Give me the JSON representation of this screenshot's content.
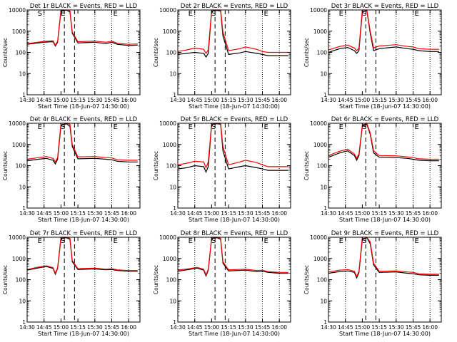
{
  "chart_data": [
    {
      "type": "line",
      "title": "Det 1r BLACK = Events, RED = LLD",
      "xlabel": "Start Time (18-Jun-07 14:30:00)",
      "ylabel": "Counts/sec",
      "yscale": "log",
      "ylim": [
        1,
        10000
      ],
      "xlim": [
        "14:30",
        "16:10"
      ],
      "x_ticks": [
        "14:30",
        "14:45",
        "15:00",
        "15:15",
        "15:30",
        "15:45",
        "16:00"
      ],
      "y_ticks": [
        "1",
        "10",
        "100",
        "1000",
        "10000"
      ],
      "markers": [
        "S",
        "E",
        "E"
      ],
      "series": [
        {
          "color": "#000000",
          "x": [
            "14:30",
            "14:45",
            "14:53",
            "14:55",
            "14:57",
            "15:00",
            "15:05",
            "15:08",
            "15:10",
            "15:15",
            "15:30",
            "15:40",
            "15:45",
            "15:50",
            "16:00",
            "16:08"
          ],
          "values": [
            240,
            300,
            320,
            200,
            300,
            9500,
            9800,
            8000,
            800,
            280,
            300,
            260,
            300,
            240,
            210,
            220
          ]
        },
        {
          "color": "#ff0000",
          "x": [
            "14:30",
            "14:45",
            "14:53",
            "14:55",
            "14:57",
            "15:00",
            "15:05",
            "15:08",
            "15:10",
            "15:15",
            "15:30",
            "15:40",
            "15:45",
            "15:50",
            "16:00",
            "16:08"
          ],
          "values": [
            260,
            330,
            350,
            220,
            330,
            10000,
            10000,
            9000,
            900,
            320,
            340,
            300,
            340,
            270,
            240,
            250
          ]
        }
      ]
    },
    {
      "type": "line",
      "title": "Det 2r BLACK = Events, RED = LLD",
      "xlabel": "Start Time (18-Jun-07 14:30:00)",
      "ylabel": "Counts/sec",
      "yscale": "log",
      "ylim": [
        1,
        10000
      ],
      "xlim": [
        "14:30",
        "16:10"
      ],
      "x_ticks": [
        "14:30",
        "14:45",
        "15:00",
        "15:15",
        "15:30",
        "15:45",
        "16:00"
      ],
      "y_ticks": [
        "1",
        "10",
        "100",
        "1000",
        "10000"
      ],
      "markers": [
        "E",
        "S",
        "E"
      ],
      "series": [
        {
          "color": "#000000",
          "x": [
            "14:30",
            "14:38",
            "14:45",
            "14:53",
            "14:55",
            "14:57",
            "15:00",
            "15:05",
            "15:08",
            "15:10",
            "15:15",
            "15:25",
            "15:30",
            "15:40",
            "15:45",
            "15:50",
            "16:00",
            "16:08"
          ],
          "values": [
            80,
            90,
            100,
            90,
            60,
            90,
            9000,
            9500,
            9000,
            600,
            80,
            95,
            110,
            90,
            80,
            70,
            70,
            70
          ]
        },
        {
          "color": "#ff0000",
          "x": [
            "14:30",
            "14:38",
            "14:45",
            "14:53",
            "14:55",
            "14:57",
            "15:00",
            "15:05",
            "15:08",
            "15:10",
            "15:15",
            "15:25",
            "15:30",
            "15:40",
            "15:45",
            "15:50",
            "16:00",
            "16:08"
          ],
          "values": [
            110,
            130,
            160,
            140,
            90,
            130,
            10000,
            10000,
            10000,
            900,
            120,
            150,
            180,
            140,
            110,
            100,
            100,
            100
          ]
        }
      ]
    },
    {
      "type": "line",
      "title": "Det 3r BLACK = Events, RED = LLD",
      "xlabel": "Start Time (18-Jun-07 14:30:00)",
      "ylabel": "Counts/sec",
      "yscale": "log",
      "ylim": [
        1,
        10000
      ],
      "xlim": [
        "14:30",
        "16:10"
      ],
      "x_ticks": [
        "14:30",
        "14:45",
        "15:00",
        "15:15",
        "15:30",
        "15:45",
        "16:00"
      ],
      "y_ticks": [
        "1",
        "10",
        "100",
        "1000",
        "10000"
      ],
      "markers": [
        "E",
        "S",
        "E"
      ],
      "series": [
        {
          "color": "#000000",
          "x": [
            "14:30",
            "14:40",
            "14:47",
            "14:53",
            "14:55",
            "14:57",
            "15:00",
            "15:04",
            "15:07",
            "15:10",
            "15:15",
            "15:25",
            "15:30",
            "15:40",
            "15:45",
            "15:50",
            "16:00",
            "16:08"
          ],
          "values": [
            100,
            150,
            170,
            120,
            90,
            120,
            8000,
            9500,
            800,
            120,
            150,
            170,
            180,
            150,
            140,
            120,
            110,
            110
          ]
        },
        {
          "color": "#ff0000",
          "x": [
            "14:30",
            "14:40",
            "14:47",
            "14:53",
            "14:55",
            "14:57",
            "15:00",
            "15:04",
            "15:07",
            "15:10",
            "15:15",
            "15:25",
            "15:30",
            "15:40",
            "15:45",
            "15:50",
            "16:00",
            "16:08"
          ],
          "values": [
            130,
            190,
            220,
            160,
            120,
            160,
            10000,
            10000,
            1000,
            160,
            200,
            220,
            230,
            190,
            180,
            150,
            140,
            140
          ]
        }
      ]
    },
    {
      "type": "line",
      "title": "Det 4r BLACK = Events, RED = LLD",
      "xlabel": "Start Time (18-Jun-07 14:30:00)",
      "ylabel": "Counts/sec",
      "yscale": "log",
      "ylim": [
        1,
        10000
      ],
      "xlim": [
        "14:30",
        "16:10"
      ],
      "x_ticks": [
        "14:30",
        "14:45",
        "15:00",
        "15:15",
        "15:30",
        "15:45",
        "16:00"
      ],
      "y_ticks": [
        "1",
        "10",
        "100",
        "1000",
        "10000"
      ],
      "markers": [
        "E",
        "S",
        "E"
      ],
      "series": [
        {
          "color": "#000000",
          "x": [
            "14:30",
            "14:40",
            "14:47",
            "14:53",
            "14:55",
            "14:57",
            "15:00",
            "15:05",
            "15:08",
            "15:10",
            "15:15",
            "15:30",
            "15:40",
            "15:45",
            "15:50",
            "16:00",
            "16:08"
          ],
          "values": [
            170,
            200,
            220,
            180,
            120,
            200,
            8000,
            9500,
            7000,
            800,
            210,
            220,
            200,
            190,
            160,
            150,
            150
          ]
        },
        {
          "color": "#ff0000",
          "x": [
            "14:30",
            "14:40",
            "14:47",
            "14:53",
            "14:55",
            "14:57",
            "15:00",
            "15:05",
            "15:08",
            "15:10",
            "15:15",
            "15:30",
            "15:40",
            "15:45",
            "15:50",
            "16:00",
            "16:08"
          ],
          "values": [
            200,
            240,
            270,
            220,
            150,
            240,
            10000,
            10000,
            9000,
            1000,
            260,
            270,
            240,
            230,
            190,
            180,
            180
          ]
        }
      ]
    },
    {
      "type": "line",
      "title": "Det 5r BLACK = Events, RED = LLD",
      "xlabel": "Start Time (18-Jun-07 14:30:00)",
      "ylabel": "Counts/sec",
      "yscale": "log",
      "ylim": [
        1,
        10000
      ],
      "xlim": [
        "14:30",
        "16:10"
      ],
      "x_ticks": [
        "14:30",
        "14:45",
        "15:00",
        "15:15",
        "15:30",
        "15:45",
        "16:00"
      ],
      "y_ticks": [
        "1",
        "10",
        "100",
        "1000",
        "10000"
      ],
      "markers": [
        "E",
        "S",
        "E"
      ],
      "series": [
        {
          "color": "#000000",
          "x": [
            "14:30",
            "14:38",
            "14:45",
            "14:53",
            "14:55",
            "14:57",
            "15:00",
            "15:05",
            "15:08",
            "15:10",
            "15:15",
            "15:25",
            "15:30",
            "15:40",
            "15:45",
            "15:50",
            "16:00",
            "16:08"
          ],
          "values": [
            70,
            80,
            100,
            90,
            50,
            90,
            9000,
            9500,
            9000,
            500,
            70,
            90,
            100,
            80,
            70,
            60,
            60,
            60
          ]
        },
        {
          "color": "#ff0000",
          "x": [
            "14:30",
            "14:38",
            "14:45",
            "14:53",
            "14:55",
            "14:57",
            "15:00",
            "15:05",
            "15:08",
            "15:10",
            "15:15",
            "15:25",
            "15:30",
            "15:40",
            "15:45",
            "15:50",
            "16:00",
            "16:08"
          ],
          "values": [
            110,
            130,
            160,
            150,
            80,
            150,
            10000,
            10000,
            10000,
            800,
            110,
            150,
            180,
            140,
            110,
            90,
            90,
            90
          ]
        }
      ]
    },
    {
      "type": "line",
      "title": "Det 6r BLACK = Events, RED = LLD",
      "xlabel": "Start Time (18-Jun-07 14:30:00)",
      "ylabel": "Counts/sec",
      "yscale": "log",
      "ylim": [
        1,
        10000
      ],
      "xlim": [
        "14:30",
        "16:10"
      ],
      "x_ticks": [
        "14:30",
        "14:45",
        "15:00",
        "15:15",
        "15:30",
        "15:45",
        "16:00"
      ],
      "y_ticks": [
        "1",
        "10",
        "100",
        "1000",
        "10000"
      ],
      "markers": [
        "E",
        "S",
        "E"
      ],
      "series": [
        {
          "color": "#000000",
          "x": [
            "14:30",
            "14:40",
            "14:47",
            "14:53",
            "14:55",
            "14:57",
            "15:00",
            "15:04",
            "15:07",
            "15:10",
            "15:15",
            "15:30",
            "15:40",
            "15:45",
            "15:50",
            "16:00",
            "16:08"
          ],
          "values": [
            250,
            400,
            500,
            300,
            180,
            300,
            7000,
            9000,
            3000,
            400,
            250,
            240,
            220,
            200,
            180,
            170,
            170
          ]
        },
        {
          "color": "#ff0000",
          "x": [
            "14:30",
            "14:40",
            "14:47",
            "14:53",
            "14:55",
            "14:57",
            "15:00",
            "15:04",
            "15:07",
            "15:10",
            "15:15",
            "15:30",
            "15:40",
            "15:45",
            "15:50",
            "16:00",
            "16:08"
          ],
          "values": [
            300,
            480,
            600,
            360,
            220,
            360,
            8000,
            10000,
            3500,
            500,
            300,
            290,
            260,
            240,
            210,
            200,
            200
          ]
        }
      ]
    },
    {
      "type": "line",
      "title": "Det 7r BLACK = Events, RED = LLD",
      "xlabel": "Start Time (18-Jun-07 14:30:00)",
      "ylabel": "Counts/sec",
      "yscale": "log",
      "ylim": [
        1,
        10000
      ],
      "xlim": [
        "14:30",
        "16:10"
      ],
      "x_ticks": [
        "14:30",
        "14:45",
        "15:00",
        "15:15",
        "15:30",
        "15:45",
        "16:00"
      ],
      "y_ticks": [
        "1",
        "10",
        "100",
        "1000",
        "10000"
      ],
      "markers": [
        "E",
        "S",
        "E"
      ],
      "series": [
        {
          "color": "#000000",
          "x": [
            "14:30",
            "14:40",
            "14:47",
            "14:53",
            "14:55",
            "14:57",
            "15:00",
            "15:05",
            "15:08",
            "15:10",
            "15:15",
            "15:30",
            "15:40",
            "15:45",
            "15:50",
            "16:00",
            "16:08"
          ],
          "values": [
            280,
            360,
            420,
            340,
            180,
            340,
            9000,
            9500,
            8000,
            700,
            300,
            320,
            290,
            300,
            270,
            250,
            250
          ]
        },
        {
          "color": "#ff0000",
          "x": [
            "14:30",
            "14:40",
            "14:47",
            "14:53",
            "14:55",
            "14:57",
            "15:00",
            "15:05",
            "15:08",
            "15:10",
            "15:15",
            "15:30",
            "15:40",
            "15:45",
            "15:50",
            "16:00",
            "16:08"
          ],
          "values": [
            300,
            390,
            450,
            370,
            200,
            370,
            10000,
            10000,
            9000,
            800,
            330,
            350,
            310,
            330,
            290,
            270,
            270
          ]
        }
      ]
    },
    {
      "type": "line",
      "title": "Det 8r BLACK = Events, RED = LLD",
      "xlabel": "Start Time (18-Jun-07 14:30:00)",
      "ylabel": "Counts/sec",
      "yscale": "log",
      "ylim": [
        1,
        10000
      ],
      "xlim": [
        "14:30",
        "16:10"
      ],
      "x_ticks": [
        "14:30",
        "14:45",
        "15:00",
        "15:15",
        "15:30",
        "15:45",
        "16:00"
      ],
      "y_ticks": [
        "1",
        "10",
        "100",
        "1000",
        "10000"
      ],
      "markers": [
        "E",
        "S",
        "E"
      ],
      "series": [
        {
          "color": "#000000",
          "x": [
            "14:30",
            "14:40",
            "14:47",
            "14:53",
            "14:55",
            "14:57",
            "15:00",
            "15:05",
            "15:08",
            "15:10",
            "15:15",
            "15:30",
            "15:40",
            "15:45",
            "15:50",
            "16:00",
            "16:08"
          ],
          "values": [
            250,
            300,
            350,
            280,
            150,
            280,
            9000,
            9500,
            8000,
            600,
            260,
            280,
            240,
            250,
            220,
            200,
            200
          ]
        },
        {
          "color": "#ff0000",
          "x": [
            "14:30",
            "14:40",
            "14:47",
            "14:53",
            "14:55",
            "14:57",
            "15:00",
            "15:05",
            "15:08",
            "15:10",
            "15:15",
            "15:30",
            "15:40",
            "15:45",
            "15:50",
            "16:00",
            "16:08"
          ],
          "values": [
            280,
            330,
            380,
            310,
            170,
            310,
            10000,
            10000,
            9000,
            700,
            290,
            310,
            270,
            280,
            240,
            220,
            220
          ]
        }
      ]
    },
    {
      "type": "line",
      "title": "Det 9r BLACK = Events, RED = LLD",
      "xlabel": "Start Time (18-Jun-07 14:30:00)",
      "ylabel": "Counts/sec",
      "yscale": "log",
      "ylim": [
        1,
        10000
      ],
      "xlim": [
        "14:30",
        "16:10"
      ],
      "x_ticks": [
        "14:30",
        "14:45",
        "15:00",
        "15:15",
        "15:30",
        "15:45",
        "16:00"
      ],
      "y_ticks": [
        "1",
        "10",
        "100",
        "1000",
        "10000"
      ],
      "markers": [
        "E",
        "S",
        "E"
      ],
      "series": [
        {
          "color": "#000000",
          "x": [
            "14:30",
            "14:40",
            "14:47",
            "14:53",
            "14:55",
            "14:57",
            "15:00",
            "15:04",
            "15:07",
            "15:10",
            "15:15",
            "15:30",
            "15:40",
            "15:45",
            "15:50",
            "16:00",
            "16:08"
          ],
          "values": [
            200,
            240,
            260,
            220,
            120,
            220,
            8000,
            9500,
            5000,
            500,
            220,
            230,
            200,
            190,
            170,
            160,
            160
          ]
        },
        {
          "color": "#ff0000",
          "x": [
            "14:30",
            "14:40",
            "14:47",
            "14:53",
            "14:55",
            "14:57",
            "15:00",
            "15:04",
            "15:07",
            "15:10",
            "15:15",
            "15:30",
            "15:40",
            "15:45",
            "15:50",
            "16:00",
            "16:08"
          ],
          "values": [
            230,
            280,
            300,
            250,
            140,
            250,
            10000,
            10000,
            6000,
            600,
            250,
            260,
            230,
            220,
            190,
            180,
            180
          ]
        }
      ]
    }
  ]
}
